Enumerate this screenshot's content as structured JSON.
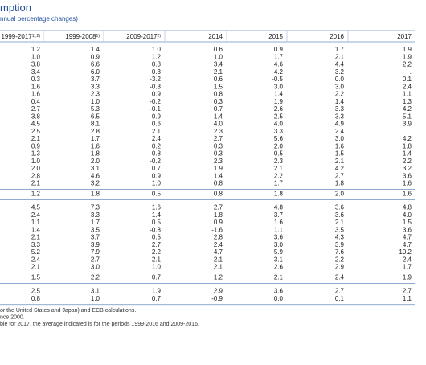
{
  "header": {
    "title": "mption",
    "subtitle": "nnual percentage changes)"
  },
  "table": {
    "columns": [
      {
        "label": "1999-2017",
        "note": "1),2)"
      },
      {
        "label": "1999-2008",
        "note": "1)"
      },
      {
        "label": "2009-2017",
        "note": "2)"
      },
      {
        "label": "2014"
      },
      {
        "label": "2015"
      },
      {
        "label": "2016"
      },
      {
        "label": "2017"
      }
    ],
    "groups": [
      {
        "rows": [
          [
            "1.2",
            "1.4",
            "1.0",
            "0.6",
            "0.9",
            "1.7",
            "1.9"
          ],
          [
            "1.0",
            "0.9",
            "1.2",
            "1.0",
            "1.7",
            "2.1",
            "1.9"
          ],
          [
            "3.8",
            "6.6",
            "0.8",
            "3.4",
            "4.6",
            "4.4",
            "2.2"
          ],
          [
            "3.4",
            "6.0",
            "0.3",
            "2.1",
            "4.2",
            "3.2",
            "."
          ],
          [
            "0.3",
            "3.7",
            "-3.2",
            "0.6",
            "-0.5",
            "0.0",
            "0.1"
          ],
          [
            "1.6",
            "3.3",
            "-0.3",
            "1.5",
            "3.0",
            "3.0",
            "2.4"
          ],
          [
            "1.6",
            "2.3",
            "0.9",
            "0.8",
            "1.4",
            "2.2",
            "1.1"
          ],
          [
            "0.4",
            "1.0",
            "-0.2",
            "0.3",
            "1.9",
            "1.4",
            "1.3"
          ],
          [
            "2.7",
            "5.3",
            "-0.1",
            "0.7",
            "2.6",
            "3.3",
            "4.2"
          ],
          [
            "3.8",
            "6.5",
            "0.9",
            "1.4",
            "2.5",
            "3.3",
            "5.1"
          ],
          [
            "4.5",
            "8.1",
            "0.6",
            "4.0",
            "4.0",
            "4.9",
            "3.9"
          ],
          [
            "2.5",
            "2.8",
            "2.1",
            "2.3",
            "3.3",
            "2.4",
            "."
          ],
          [
            "2.1",
            "1.7",
            "2.4",
            "2.7",
            "5.6",
            "3.0",
            "4.2"
          ],
          [
            "0.9",
            "1.6",
            "0.2",
            "0.3",
            "2.0",
            "1.6",
            "1.8"
          ],
          [
            "1.3",
            "1.8",
            "0.8",
            "0.3",
            "0.5",
            "1.5",
            "1.4"
          ],
          [
            "1.0",
            "2.0",
            "-0.2",
            "2.3",
            "2.3",
            "2.1",
            "2.2"
          ],
          [
            "2.0",
            "3.1",
            "0.7",
            "1.9",
            "2.1",
            "4.2",
            "3.2"
          ],
          [
            "2.8",
            "4.6",
            "0.9",
            "1.4",
            "2.2",
            "2.7",
            "3.6"
          ],
          [
            "2.1",
            "3.2",
            "1.0",
            "0.8",
            "1.7",
            "1.8",
            "1.6"
          ]
        ],
        "total": [
          "1.2",
          "1.8",
          "0.5",
          "0.8",
          "1.8",
          "2.0",
          "1.6"
        ]
      },
      {
        "rows": [
          [
            "4.5",
            "7.3",
            "1.6",
            "2.7",
            "4.8",
            "3.6",
            "4.8"
          ],
          [
            "2.4",
            "3.3",
            "1.4",
            "1.8",
            "3.7",
            "3.6",
            "4.0"
          ],
          [
            "1.1",
            "1.7",
            "0.5",
            "0.9",
            "1.6",
            "2.1",
            "1.5"
          ],
          [
            "1.4",
            "3.5",
            "-0.8",
            "-1.6",
            "1.1",
            "3.5",
            "3.6"
          ],
          [
            "2.1",
            "3.7",
            "0.5",
            "2.8",
            "3.6",
            "4.3",
            "4.7"
          ],
          [
            "3.3",
            "3.9",
            "2.7",
            "2.4",
            "3.0",
            "3.9",
            "4.7"
          ],
          [
            "5.2",
            "7.9",
            "2.2",
            "4.7",
            "5.9",
            "7.6",
            "10.2"
          ],
          [
            "2.4",
            "2.7",
            "2.1",
            "2.1",
            "3.1",
            "2.2",
            "2.4"
          ],
          [
            "2.1",
            "3.0",
            "1.0",
            "2.1",
            "2.6",
            "2.9",
            "1.7"
          ]
        ],
        "total": [
          "1.5",
          "2.2",
          "0.7",
          "1.2",
          "2.1",
          "2.4",
          "1.9"
        ]
      },
      {
        "rows": [
          [
            "2.5",
            "3.1",
            "1.9",
            "2.9",
            "3.6",
            "2.7",
            "2.7"
          ],
          [
            "0.8",
            "1.0",
            "0.7",
            "-0.9",
            "0.0",
            "0.1",
            "1.1"
          ]
        ]
      }
    ]
  },
  "footnotes": [
    "or the United States and Japan) and ECB calculations.",
    "nce 2000.",
    "ble for 2017, the average indicated is for the periods 1999-2016 and 2009-2016."
  ]
}
